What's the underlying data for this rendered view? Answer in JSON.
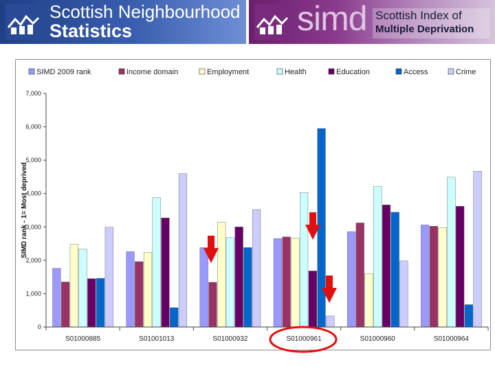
{
  "header": {
    "left_line1": "Scottish Neighbourhood",
    "left_line2": "Statistics",
    "simd_mark": "simd",
    "right_line1": "Scottish Index of",
    "right_line2": "Multiple Deprivation"
  },
  "icons": [
    "house-logo-icon",
    "house-logo-icon",
    "down-arrow-icon",
    "circle-highlight"
  ],
  "chart_data": {
    "type": "bar",
    "title": "",
    "xlabel": "",
    "ylabel": "SIMD rank - 1= Most deprived",
    "ylim": [
      0,
      7000
    ],
    "yticks": [
      "0",
      "1,000",
      "2,000",
      "3,000",
      "4,000",
      "5,000",
      "6,000",
      "7,000"
    ],
    "grid": false,
    "legend_position": "top",
    "categories": [
      "S01000885",
      "S01001013",
      "S01000932",
      "S01000961",
      "S01000960",
      "S01000964"
    ],
    "series": [
      {
        "name": "SIMD 2009 rank",
        "color": "#9999ff",
        "values": [
          1760,
          2260,
          2380,
          2650,
          2860,
          3060
        ]
      },
      {
        "name": "Income domain",
        "color": "#993366",
        "values": [
          1350,
          1960,
          1340,
          2700,
          3120,
          3020
        ]
      },
      {
        "name": "Employment",
        "color": "#ffffcc",
        "values": [
          2480,
          2240,
          3140,
          2670,
          1600,
          2980
        ]
      },
      {
        "name": "Health",
        "color": "#ccffff",
        "values": [
          2340,
          3880,
          2680,
          4030,
          4210,
          4490
        ]
      },
      {
        "name": "Education",
        "color": "#660066",
        "values": [
          1450,
          3270,
          3000,
          1680,
          3660,
          3620
        ]
      },
      {
        "name": "Access",
        "color": "#0066cc",
        "values": [
          1460,
          580,
          2380,
          5950,
          3440,
          670
        ]
      },
      {
        "name": "Crime",
        "color": "#ccccff",
        "values": [
          2990,
          4600,
          3520,
          330,
          1980,
          4670
        ]
      }
    ]
  }
}
